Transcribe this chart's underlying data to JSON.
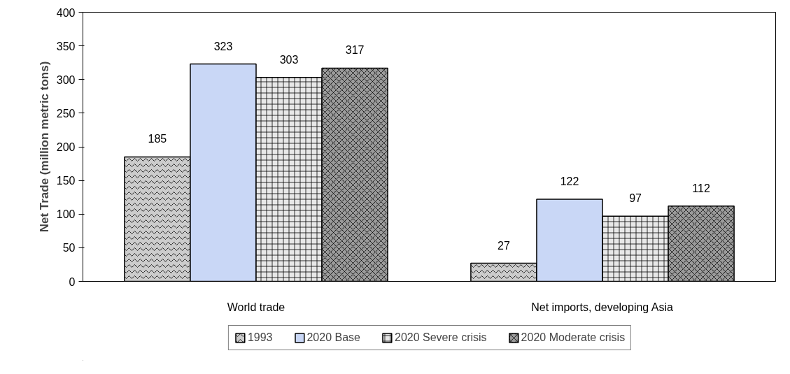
{
  "chart_data": {
    "type": "bar",
    "ylabel": "Net Trade (million metric tons)",
    "categories": [
      "World trade",
      "Net imports, developing Asia"
    ],
    "series": [
      {
        "name": "1993",
        "color": "#cccccc",
        "values": [
          185,
          27
        ]
      },
      {
        "name": "2020 Base",
        "color": "#c9d7f6",
        "values": [
          323,
          122
        ]
      },
      {
        "name": "2020 Severe crisis",
        "color": "#e8e8e8",
        "values": [
          303,
          97
        ]
      },
      {
        "name": "2020 Moderate crisis",
        "color": "#9a9a9a",
        "values": [
          317,
          112
        ]
      }
    ],
    "ylim": [
      0,
      400
    ],
    "yticks": [
      0,
      50,
      100,
      150,
      200,
      250,
      300,
      350,
      400
    ],
    "data_labels": true,
    "grid": false,
    "legend": "bottom"
  }
}
